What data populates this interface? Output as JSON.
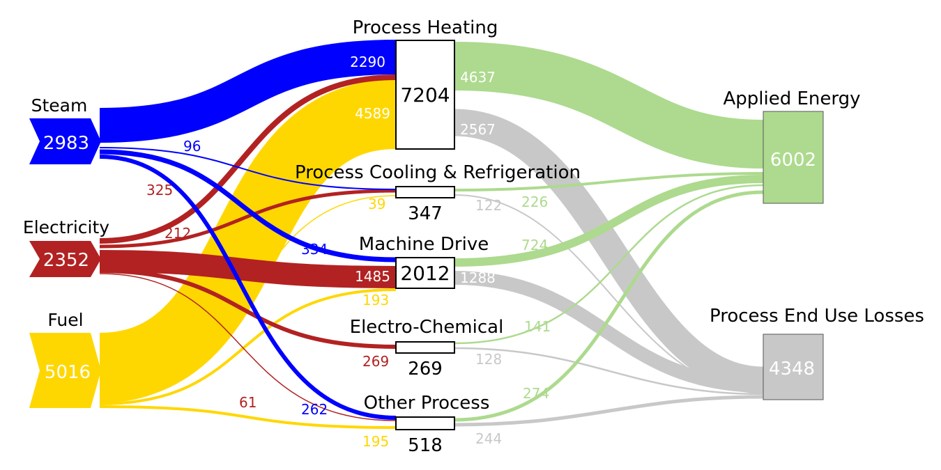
{
  "colors": {
    "steam": "#0000FF",
    "electricity": "#B22222",
    "fuel": "#FFD700",
    "applied": "#ADDA8E",
    "losses": "#C8C8C8"
  },
  "sources": {
    "steam": {
      "label": "Steam",
      "value": "2983"
    },
    "electricity": {
      "label": "Electricity",
      "value": "2352"
    },
    "fuel": {
      "label": "Fuel",
      "value": "5016"
    }
  },
  "processes": {
    "heating": {
      "label": "Process Heating",
      "total": "7204",
      "steam_in": "2290",
      "fuel_in": "4589",
      "applied_out": "4637",
      "loss_out": "2567"
    },
    "cooling": {
      "label": "Process Cooling & Refrigeration",
      "total": "347",
      "fuel_in": "39",
      "applied_out": "226",
      "loss_out": "122"
    },
    "machine": {
      "label": "Machine Drive",
      "total": "2012",
      "steam_in": "334",
      "elec_in": "1485",
      "fuel_in": "193",
      "applied_out": "724",
      "loss_out": "1288"
    },
    "electrochem": {
      "label": "Electro-Chemical",
      "total": "269",
      "elec_in": "269",
      "applied_out": "141",
      "loss_out": "128"
    },
    "other": {
      "label": "Other Process",
      "total": "518",
      "steam_in": "262",
      "fuel_in": "195",
      "elec_in": "61",
      "applied_out": "274",
      "loss_out": "244"
    }
  },
  "flow_labels": {
    "steam_to_cooling": "96",
    "elec_to_heating": "325",
    "elec_to_cooling": "212"
  },
  "sinks": {
    "applied": {
      "label": "Applied Energy",
      "value": "6002"
    },
    "losses": {
      "label": "Process End Use Losses",
      "value": "4348"
    }
  }
}
